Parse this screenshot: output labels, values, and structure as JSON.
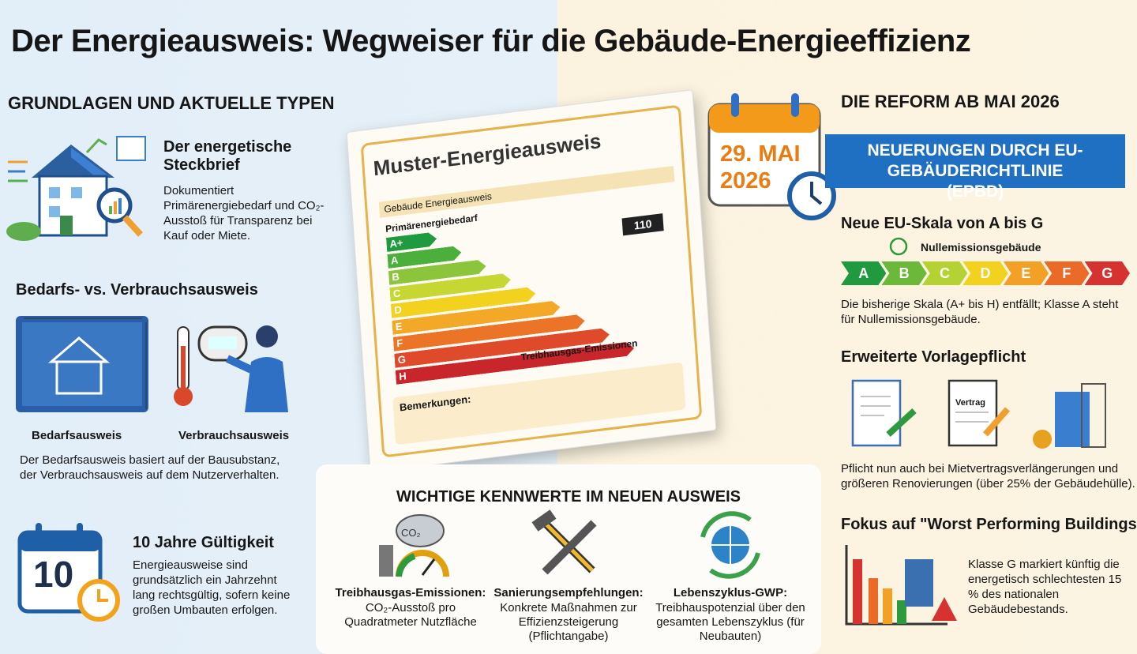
{
  "title": "Der Energieausweis: Wegweiser für die Gebäude-Energieeffizienz",
  "left": {
    "heading": "GRUNDLAGEN UND AKTUELLE TYPEN",
    "profile": {
      "title": "Der energetische Steckbrief",
      "text": "Dokumentiert Primärenergiebedarf und CO₂-Ausstoß für Transparenz bei Kauf oder Miete."
    },
    "types": {
      "title": "Bedarfs- vs. Verbrauchsausweis",
      "labels": [
        "Bedarfsausweis",
        "Verbrauchsausweis"
      ],
      "text": "Der Bedarfsausweis basiert auf der Bausubstanz, der Verbrauchsausweis auf dem Nutzerverhalten."
    },
    "validity": {
      "icon": "10",
      "title": "10 Jahre Gültigkeit",
      "text": "Energieausweise sind grundsätzlich ein Jahrzehnt lang rechtsgültig, sofern keine großen Umbauten erfolgen."
    }
  },
  "certificate": {
    "title": "Muster-Energieausweis",
    "section": "Gebäude Energieausweis",
    "primary": "Primärenergiebedarf",
    "classes": [
      {
        "label": "A+",
        "color": "#1f9a3e"
      },
      {
        "label": "A",
        "color": "#4caf3c"
      },
      {
        "label": "B",
        "color": "#8cc43c"
      },
      {
        "label": "C",
        "color": "#c6d632"
      },
      {
        "label": "D",
        "color": "#f2d21e"
      },
      {
        "label": "E",
        "color": "#f3a927"
      },
      {
        "label": "F",
        "color": "#ec7426"
      },
      {
        "label": "G",
        "color": "#de4a2a"
      },
      {
        "label": "H",
        "color": "#c8262b"
      }
    ],
    "value": "110",
    "emissions": "Treibhausgas-Emissionen",
    "remarks": "Bemerkungen:"
  },
  "center": {
    "heading": "WICHTIGE KENNWERTE IM NEUEN AUSWEIS",
    "items": [
      {
        "icon": "CO₂",
        "title": "Treibhausgas-Emissionen:",
        "text": "CO₂-Ausstoß pro Quadratmeter Nutzfläche"
      },
      {
        "title": "Sanierungsempfehlungen:",
        "text": "Konkrete Maßnahmen zur Effizienzsteigerung (Pflichtangabe)"
      },
      {
        "title": "Lebenszyklus-GWP:",
        "text": "Treibhauspotenzial über den gesamten Lebenszyklus (für Neubauten)"
      }
    ]
  },
  "right": {
    "heading": "DIE REFORM AB MAI 2026",
    "date": "29. MAI 2026",
    "banner": "NEUERUNGEN DURCH EU-GEBÄUDERICHTLINIE (EPBD)",
    "scale": {
      "title": "Neue EU-Skala von A bis G",
      "zero": "Nullemissionsgebäude",
      "classes": [
        {
          "label": "A",
          "color": "#1f9a3e"
        },
        {
          "label": "B",
          "color": "#6cb83a"
        },
        {
          "label": "C",
          "color": "#b4d234"
        },
        {
          "label": "D",
          "color": "#f2d21e"
        },
        {
          "label": "E",
          "color": "#f3a027"
        },
        {
          "label": "F",
          "color": "#ec6a28"
        },
        {
          "label": "G",
          "color": "#d6322f"
        }
      ],
      "text": "Die bisherige Skala (A+ bis H) entfällt; Klasse A steht für Nullemissionsgebäude."
    },
    "obligation": {
      "title": "Erweiterte Vorlagepflicht",
      "contract": "Vertrag",
      "text": "Pflicht nun auch bei Mietvertragsverlängerungen und größeren Renovierungen (über 25% der Gebäudehülle)."
    },
    "worst": {
      "title": "Fokus auf \"Worst Performing Buildings\"",
      "text": "Klasse G markiert künftig die energetisch schlechtesten 15 % des nationalen Gebäudebestands."
    }
  }
}
